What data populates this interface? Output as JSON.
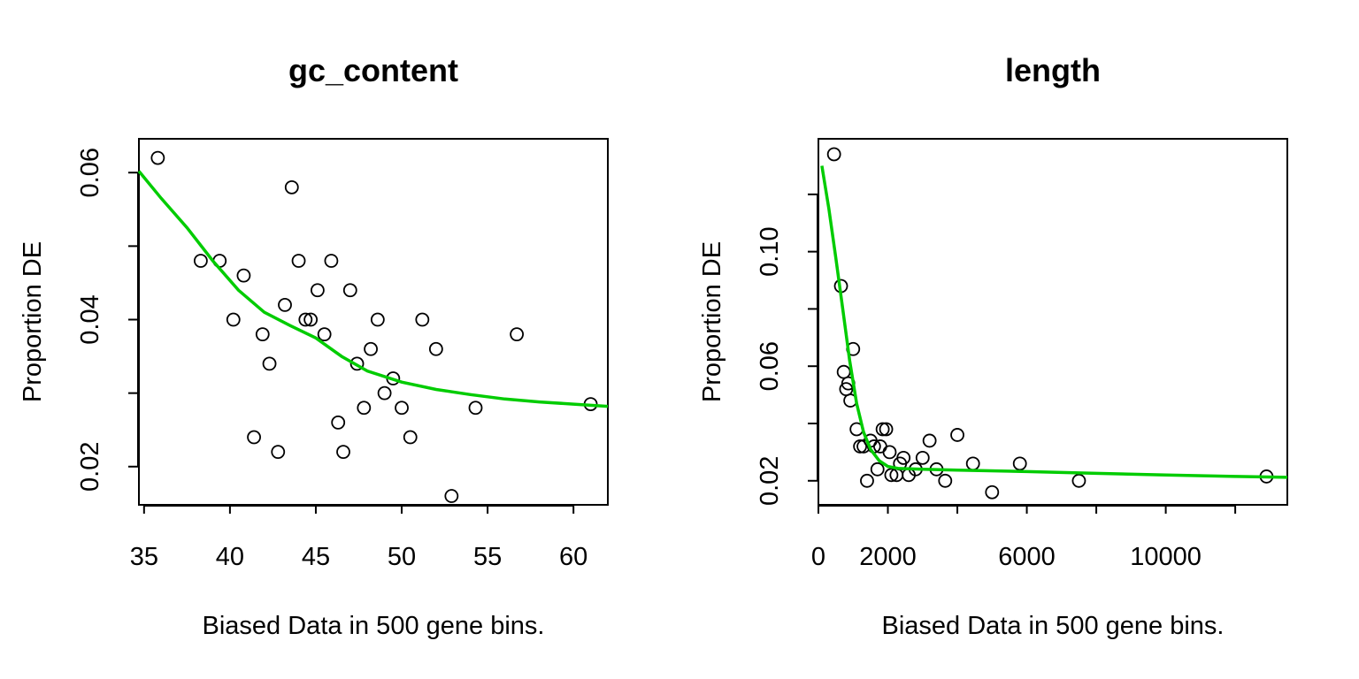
{
  "chart_data": [
    {
      "type": "scatter",
      "title": "gc_content",
      "xlabel": "Biased Data in 500 gene bins.",
      "ylabel": "Proportion DE",
      "xlim": [
        34.7,
        62
      ],
      "ylim": [
        0.0148,
        0.0646
      ],
      "x_ticks": [
        35,
        40,
        45,
        50,
        55,
        60
      ],
      "x_tick_labels": [
        "35",
        "40",
        "45",
        "50",
        "55",
        "60"
      ],
      "y_ticks": [
        0.02,
        0.03,
        0.04,
        0.05,
        0.06
      ],
      "y_tick_labels": [
        "0.02",
        "",
        "0.04",
        "",
        "0.06"
      ],
      "trend_color": "#00CC00",
      "points": [
        {
          "x": 35.8,
          "y": 0.062
        },
        {
          "x": 38.3,
          "y": 0.048
        },
        {
          "x": 39.4,
          "y": 0.048
        },
        {
          "x": 40.2,
          "y": 0.04
        },
        {
          "x": 40.8,
          "y": 0.046
        },
        {
          "x": 41.4,
          "y": 0.024
        },
        {
          "x": 41.9,
          "y": 0.038
        },
        {
          "x": 42.3,
          "y": 0.034
        },
        {
          "x": 42.8,
          "y": 0.022
        },
        {
          "x": 43.2,
          "y": 0.042
        },
        {
          "x": 43.6,
          "y": 0.058
        },
        {
          "x": 44.0,
          "y": 0.048
        },
        {
          "x": 44.4,
          "y": 0.04
        },
        {
          "x": 44.7,
          "y": 0.04
        },
        {
          "x": 45.1,
          "y": 0.044
        },
        {
          "x": 45.5,
          "y": 0.038
        },
        {
          "x": 45.9,
          "y": 0.048
        },
        {
          "x": 46.3,
          "y": 0.026
        },
        {
          "x": 46.6,
          "y": 0.022
        },
        {
          "x": 47.0,
          "y": 0.044
        },
        {
          "x": 47.4,
          "y": 0.034
        },
        {
          "x": 47.8,
          "y": 0.028
        },
        {
          "x": 48.2,
          "y": 0.036
        },
        {
          "x": 48.6,
          "y": 0.04
        },
        {
          "x": 49.0,
          "y": 0.03
        },
        {
          "x": 49.5,
          "y": 0.032
        },
        {
          "x": 50.0,
          "y": 0.028
        },
        {
          "x": 50.5,
          "y": 0.024
        },
        {
          "x": 51.2,
          "y": 0.04
        },
        {
          "x": 52.0,
          "y": 0.036
        },
        {
          "x": 52.9,
          "y": 0.016
        },
        {
          "x": 54.3,
          "y": 0.028
        },
        {
          "x": 56.7,
          "y": 0.038
        },
        {
          "x": 61.0,
          "y": 0.0285
        }
      ],
      "trend": [
        {
          "x": 34.7,
          "y": 0.0602
        },
        {
          "x": 36.0,
          "y": 0.0565
        },
        {
          "x": 37.5,
          "y": 0.0525
        },
        {
          "x": 39.0,
          "y": 0.048
        },
        {
          "x": 40.5,
          "y": 0.044
        },
        {
          "x": 42.0,
          "y": 0.041
        },
        {
          "x": 43.5,
          "y": 0.0392
        },
        {
          "x": 45.0,
          "y": 0.0375
        },
        {
          "x": 46.5,
          "y": 0.035
        },
        {
          "x": 48.0,
          "y": 0.033
        },
        {
          "x": 50.0,
          "y": 0.0315
        },
        {
          "x": 52.0,
          "y": 0.0305
        },
        {
          "x": 54.0,
          "y": 0.0298
        },
        {
          "x": 56.0,
          "y": 0.0292
        },
        {
          "x": 58.0,
          "y": 0.0288
        },
        {
          "x": 60.0,
          "y": 0.0285
        },
        {
          "x": 62.0,
          "y": 0.0282
        }
      ]
    },
    {
      "type": "scatter",
      "title": "length",
      "xlabel": "Biased Data in 500 gene bins.",
      "ylabel": "Proportion DE",
      "xlim": [
        0,
        13500
      ],
      "ylim": [
        0.0116,
        0.1394
      ],
      "x_ticks": [
        0,
        2000,
        4000,
        6000,
        8000,
        10000,
        12000
      ],
      "x_tick_labels": [
        "0",
        "2000",
        "",
        "6000",
        "",
        "10000",
        ""
      ],
      "y_ticks": [
        0.02,
        0.04,
        0.06,
        0.08,
        0.1,
        0.12
      ],
      "y_tick_labels": [
        "0.02",
        "",
        "0.06",
        "",
        "0.10",
        ""
      ],
      "trend_color": "#00CC00",
      "points": [
        {
          "x": 450,
          "y": 0.134
        },
        {
          "x": 650,
          "y": 0.088
        },
        {
          "x": 730,
          "y": 0.058
        },
        {
          "x": 800,
          "y": 0.052
        },
        {
          "x": 860,
          "y": 0.054
        },
        {
          "x": 920,
          "y": 0.048
        },
        {
          "x": 1000,
          "y": 0.066
        },
        {
          "x": 1100,
          "y": 0.038
        },
        {
          "x": 1200,
          "y": 0.032
        },
        {
          "x": 1300,
          "y": 0.032
        },
        {
          "x": 1400,
          "y": 0.02
        },
        {
          "x": 1500,
          "y": 0.034
        },
        {
          "x": 1600,
          "y": 0.032
        },
        {
          "x": 1700,
          "y": 0.024
        },
        {
          "x": 1780,
          "y": 0.032
        },
        {
          "x": 1850,
          "y": 0.038
        },
        {
          "x": 1950,
          "y": 0.038
        },
        {
          "x": 2050,
          "y": 0.03
        },
        {
          "x": 2100,
          "y": 0.022
        },
        {
          "x": 2250,
          "y": 0.022
        },
        {
          "x": 2350,
          "y": 0.026
        },
        {
          "x": 2450,
          "y": 0.028
        },
        {
          "x": 2600,
          "y": 0.022
        },
        {
          "x": 2800,
          "y": 0.024
        },
        {
          "x": 3000,
          "y": 0.028
        },
        {
          "x": 3200,
          "y": 0.034
        },
        {
          "x": 3400,
          "y": 0.024
        },
        {
          "x": 3650,
          "y": 0.02
        },
        {
          "x": 4000,
          "y": 0.036
        },
        {
          "x": 4450,
          "y": 0.026
        },
        {
          "x": 5000,
          "y": 0.016
        },
        {
          "x": 5800,
          "y": 0.026
        },
        {
          "x": 7500,
          "y": 0.02
        },
        {
          "x": 12900,
          "y": 0.0215
        }
      ],
      "trend": [
        {
          "x": 100,
          "y": 0.13
        },
        {
          "x": 300,
          "y": 0.115
        },
        {
          "x": 500,
          "y": 0.098
        },
        {
          "x": 700,
          "y": 0.08
        },
        {
          "x": 900,
          "y": 0.062
        },
        {
          "x": 1100,
          "y": 0.047
        },
        {
          "x": 1300,
          "y": 0.037
        },
        {
          "x": 1500,
          "y": 0.031
        },
        {
          "x": 1750,
          "y": 0.027
        },
        {
          "x": 2000,
          "y": 0.025
        },
        {
          "x": 2300,
          "y": 0.0243
        },
        {
          "x": 3000,
          "y": 0.024
        },
        {
          "x": 4000,
          "y": 0.0237
        },
        {
          "x": 6000,
          "y": 0.0232
        },
        {
          "x": 8000,
          "y": 0.0226
        },
        {
          "x": 10000,
          "y": 0.022
        },
        {
          "x": 12000,
          "y": 0.0215
        },
        {
          "x": 13500,
          "y": 0.0212
        }
      ]
    }
  ]
}
